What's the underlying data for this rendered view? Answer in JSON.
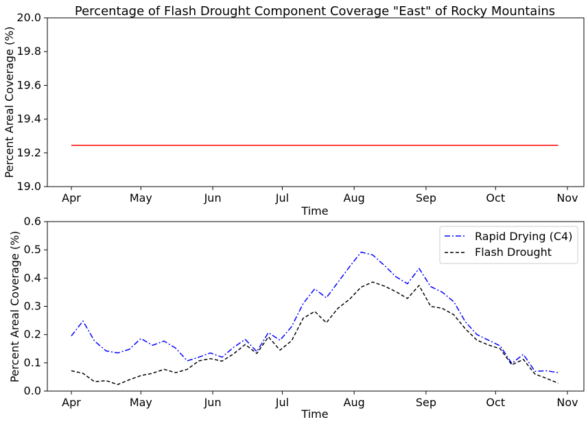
{
  "chart_data": [
    {
      "type": "line",
      "title": "Percentage of Flash Drought Component Coverage \"East\" of Rocky Mountains",
      "xlabel": "Time",
      "ylabel": "Percent Areal Coverage (%)",
      "ylim": [
        19.0,
        20.0
      ],
      "yticks": [
        "19.0",
        "19.2",
        "19.4",
        "19.6",
        "19.8",
        "20.0"
      ],
      "xticks": [
        "Apr",
        "May",
        "Jun",
        "Jul",
        "Aug",
        "Sep",
        "Oct",
        "Nov"
      ],
      "grid": false,
      "series": [
        {
          "color": "#ff0000",
          "style": "solid",
          "x": [
            "2019-04-01",
            "2019-10-28"
          ],
          "values": [
            19.245,
            19.245
          ]
        }
      ]
    },
    {
      "type": "line",
      "title": "",
      "xlabel": "Time",
      "ylabel": "Percent Areal Coverage (%)",
      "ylim": [
        0.0,
        0.6
      ],
      "yticks": [
        "0.0",
        "0.1",
        "0.2",
        "0.3",
        "0.4",
        "0.5",
        "0.6"
      ],
      "xticks": [
        "Apr",
        "May",
        "Jun",
        "Jul",
        "Aug",
        "Sep",
        "Oct",
        "Nov"
      ],
      "grid": false,
      "legend": "top-right",
      "x": [
        "2019-04-01",
        "2019-04-06",
        "2019-04-11",
        "2019-04-16",
        "2019-04-21",
        "2019-04-26",
        "2019-05-01",
        "2019-05-06",
        "2019-05-11",
        "2019-05-16",
        "2019-05-21",
        "2019-05-26",
        "2019-05-31",
        "2019-06-05",
        "2019-06-10",
        "2019-06-15",
        "2019-06-20",
        "2019-06-25",
        "2019-06-30",
        "2019-07-05",
        "2019-07-10",
        "2019-07-15",
        "2019-07-20",
        "2019-07-25",
        "2019-07-30",
        "2019-08-04",
        "2019-08-09",
        "2019-08-14",
        "2019-08-19",
        "2019-08-24",
        "2019-08-29",
        "2019-09-03",
        "2019-09-08",
        "2019-09-13",
        "2019-09-18",
        "2019-09-23",
        "2019-09-28",
        "2019-10-03",
        "2019-10-08",
        "2019-10-13",
        "2019-10-18",
        "2019-10-23",
        "2019-10-28"
      ],
      "series": [
        {
          "name": "Rapid Drying (C4)",
          "color": "#0000ff",
          "style": "dashdot",
          "values": [
            0.195,
            0.248,
            0.177,
            0.142,
            0.135,
            0.148,
            0.186,
            0.162,
            0.177,
            0.152,
            0.107,
            0.12,
            0.135,
            0.12,
            0.155,
            0.183,
            0.14,
            0.207,
            0.18,
            0.228,
            0.31,
            0.362,
            0.33,
            0.385,
            0.44,
            0.492,
            0.482,
            0.445,
            0.405,
            0.38,
            0.434,
            0.37,
            0.35,
            0.316,
            0.245,
            0.2,
            0.18,
            0.16,
            0.098,
            0.13,
            0.07,
            0.072,
            0.065
          ]
        },
        {
          "name": "Flash Drought",
          "color": "#000000",
          "style": "dashed",
          "values": [
            0.072,
            0.063,
            0.033,
            0.037,
            0.023,
            0.04,
            0.055,
            0.063,
            0.077,
            0.065,
            0.077,
            0.107,
            0.115,
            0.106,
            0.132,
            0.165,
            0.133,
            0.192,
            0.145,
            0.178,
            0.258,
            0.282,
            0.242,
            0.293,
            0.325,
            0.368,
            0.386,
            0.372,
            0.352,
            0.328,
            0.374,
            0.3,
            0.293,
            0.27,
            0.22,
            0.18,
            0.163,
            0.15,
            0.093,
            0.112,
            0.06,
            0.045,
            0.028
          ]
        }
      ]
    }
  ]
}
